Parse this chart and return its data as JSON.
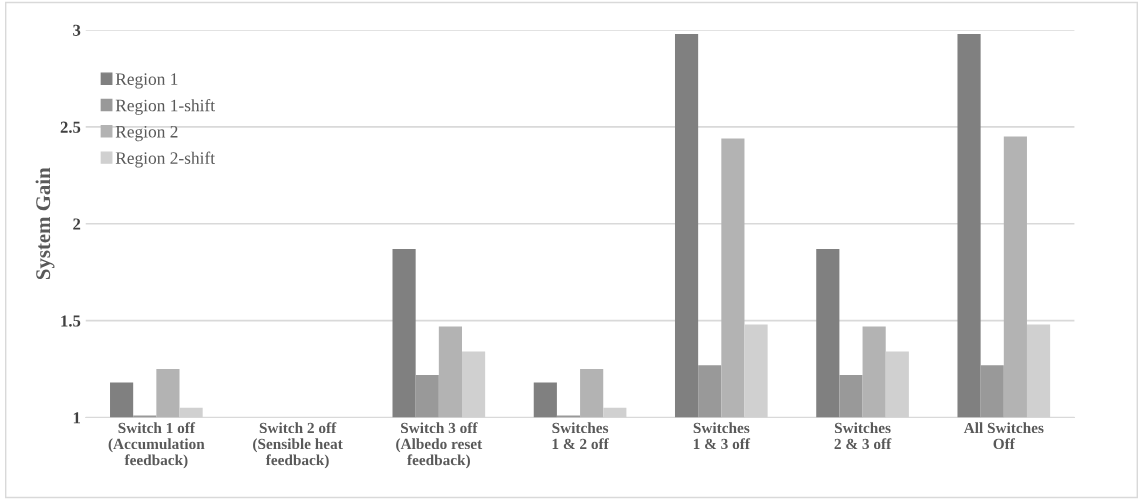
{
  "chart_data": {
    "type": "bar",
    "ylabel": "System Gain",
    "categories": [
      "Switch 1 off\n(Accumulation\nfeedback)",
      "Switch 2 off\n(Sensible heat\nfeedback)",
      "Switch 3 off\n(Albedo reset\nfeedback)",
      "Switches\n1 & 2 off",
      "Switches\n1 & 3 off",
      "Switches\n2 & 3 off",
      "All Switches\nOff"
    ],
    "series": [
      {
        "name": "Region 1",
        "color": "#808080",
        "values": [
          1.18,
          1.0,
          1.87,
          1.18,
          2.98,
          1.87,
          2.98
        ]
      },
      {
        "name": "Region 1-shift",
        "color": "#999999",
        "values": [
          1.01,
          1.0,
          1.22,
          1.01,
          1.27,
          1.22,
          1.27
        ]
      },
      {
        "name": "Region 2",
        "color": "#b3b3b3",
        "values": [
          1.25,
          1.0,
          1.47,
          1.25,
          2.44,
          1.47,
          2.45
        ]
      },
      {
        "name": "Region 2-shift",
        "color": "#d0d0d0",
        "values": [
          1.05,
          1.0,
          1.34,
          1.05,
          1.48,
          1.34,
          1.48
        ]
      }
    ],
    "ylim": [
      1,
      3
    ],
    "yticks": [
      1,
      1.5,
      2,
      2.5,
      3
    ],
    "grid": "y",
    "legend": "top left"
  }
}
